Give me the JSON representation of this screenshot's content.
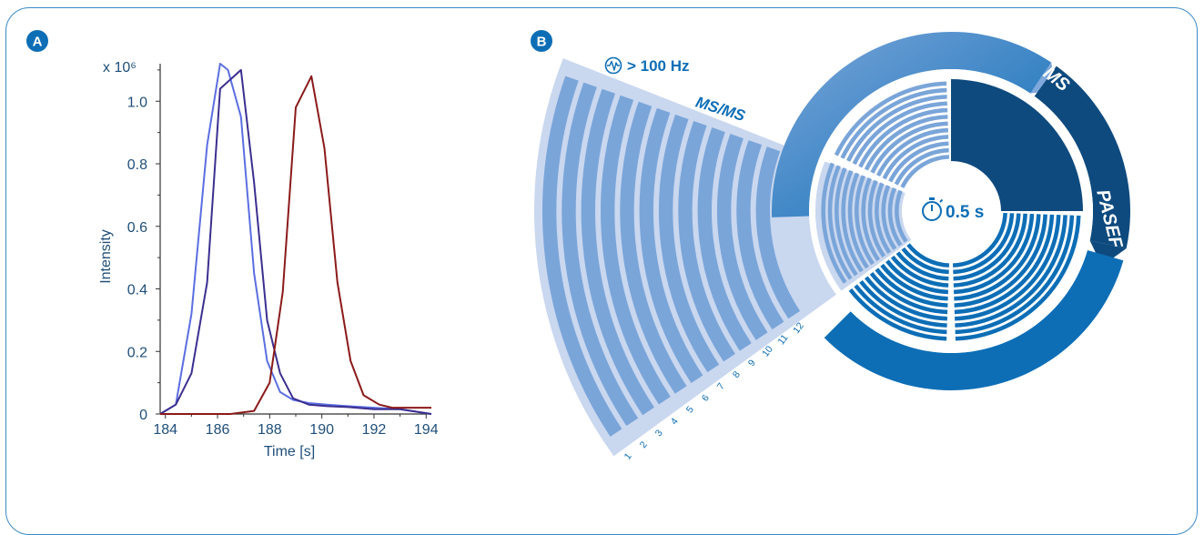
{
  "panel_a": {
    "badge": "A",
    "chart_data": {
      "type": "line",
      "xlabel": "Time [s]",
      "ylabel": "Intensity",
      "y_multiplier": "x 10⁶",
      "xlim": [
        183.8,
        194.2
      ],
      "ylim": [
        0,
        1.12
      ],
      "x_ticks": [
        184,
        186,
        188,
        190,
        192,
        194
      ],
      "x_tick_labels": [
        "184",
        "186",
        "188",
        "190",
        "192",
        "194"
      ],
      "y_ticks": [
        0,
        0.2,
        0.4,
        0.6,
        0.8,
        1.0
      ],
      "y_tick_labels": [
        "0",
        "0.2",
        "0.4",
        "0.6",
        "0.8",
        "1.0"
      ],
      "series": [
        {
          "color": "#5b6ee1",
          "x": [
            183.8,
            184.4,
            185.0,
            185.6,
            186.1,
            186.4,
            186.9,
            187.4,
            187.9,
            188.4,
            188.9,
            189.5,
            190.2,
            191.0,
            192.0,
            193.0,
            194.2
          ],
          "y": [
            0.0,
            0.03,
            0.32,
            0.86,
            1.12,
            1.1,
            0.95,
            0.45,
            0.17,
            0.07,
            0.045,
            0.035,
            0.03,
            0.025,
            0.02,
            0.015,
            0.0
          ]
        },
        {
          "color": "#3b2f8f",
          "x": [
            183.8,
            184.4,
            185.0,
            185.6,
            186.1,
            186.9,
            187.4,
            187.9,
            188.4,
            188.9,
            189.5,
            190.2,
            191.0,
            192.0,
            193.0,
            194.2
          ],
          "y": [
            0.0,
            0.03,
            0.13,
            0.42,
            1.04,
            1.1,
            0.74,
            0.3,
            0.13,
            0.05,
            0.03,
            0.025,
            0.022,
            0.015,
            0.015,
            0.0
          ]
        },
        {
          "color": "#8b1a1a",
          "x": [
            183.8,
            186.5,
            187.4,
            188.0,
            188.5,
            189.0,
            189.6,
            190.1,
            190.6,
            191.1,
            191.6,
            192.2,
            192.7,
            193.4,
            194.2
          ],
          "y": [
            0.0,
            0.0,
            0.01,
            0.1,
            0.39,
            0.98,
            1.08,
            0.85,
            0.42,
            0.17,
            0.06,
            0.03,
            0.02,
            0.02,
            0.02
          ]
        }
      ]
    }
  },
  "panel_b": {
    "badge": "B",
    "ms_label": "MS",
    "pasef_label": "PASEF",
    "msms_label": "MS/MS",
    "hz_label": "> 100 Hz",
    "time_label": "0.5 s",
    "ramp_numbers": [
      "1",
      "2",
      "3",
      "4",
      "5",
      "6",
      "7",
      "8",
      "9",
      "10",
      "11",
      "12"
    ],
    "icons": [
      "heartbeat-icon",
      "stopwatch-icon"
    ],
    "colors": {
      "ms_dark": "#0e4a7e",
      "pasef_blue": "#0d6eb6",
      "ramp_light": "#7aa5d9",
      "fan_background": "#c9d7ef"
    }
  }
}
